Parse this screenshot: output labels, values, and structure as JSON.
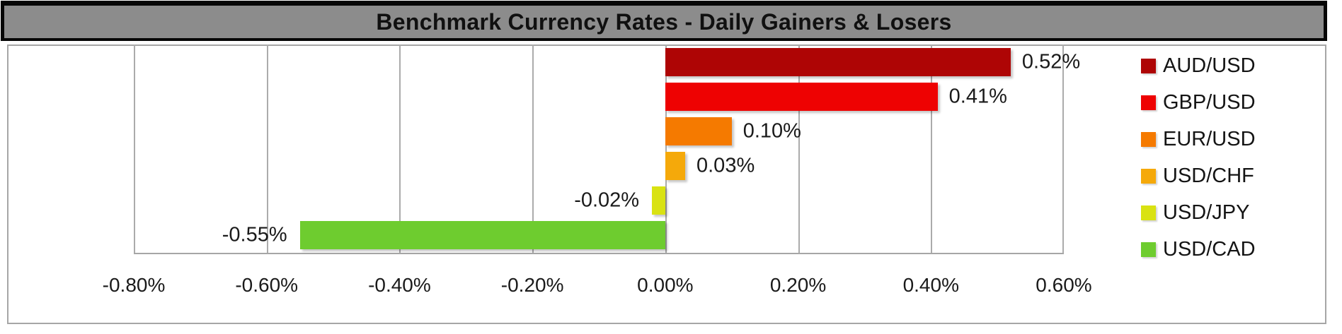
{
  "chart_data": {
    "type": "bar",
    "orientation": "horizontal",
    "title": "Benchmark Currency Rates - Daily Gainers & Losers",
    "categories": [
      "AUD/USD",
      "GBP/USD",
      "EUR/USD",
      "USD/CHF",
      "USD/JPY",
      "USD/CAD"
    ],
    "values": [
      0.52,
      0.41,
      0.1,
      0.03,
      -0.02,
      -0.55
    ],
    "data_labels": [
      "0.52%",
      "0.41%",
      "0.10%",
      "0.03%",
      "-0.02%",
      "-0.55%"
    ],
    "series_colors": [
      "#AE0505",
      "#EE0202",
      "#F57A00",
      "#F5A90A",
      "#D9E212",
      "#6ECC2F"
    ],
    "xlim": [
      -0.8,
      0.6
    ],
    "x_tick_values": [
      -0.8,
      -0.6,
      -0.4,
      -0.2,
      0.0,
      0.2,
      0.4,
      0.6
    ],
    "x_tick_labels": [
      "-0.80%",
      "-0.60%",
      "-0.40%",
      "-0.20%",
      "0.00%",
      "0.20%",
      "0.40%",
      "0.60%"
    ],
    "grid": true,
    "legend_position": "right",
    "legend_entries": [
      "AUD/USD",
      "GBP/USD",
      "EUR/USD",
      "USD/CHF",
      "USD/JPY",
      "USD/CAD"
    ]
  }
}
